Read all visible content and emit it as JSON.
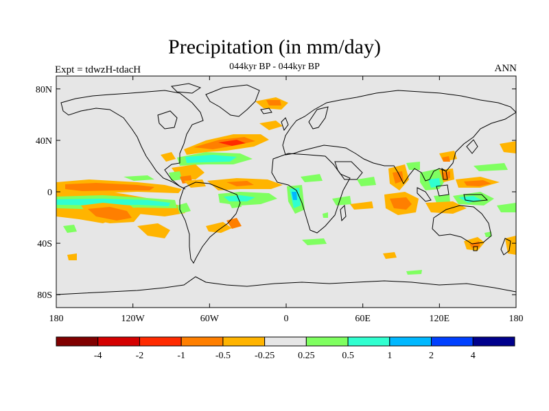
{
  "header": {
    "title": "Precipitation (in mm/day)",
    "subtitle": "044kyr BP - 044kyr BP",
    "left_label": "Expt = tdwzH-tdacH",
    "right_label": "ANN"
  },
  "map": {
    "projection": "cylindrical equidistant",
    "lon_range": [
      -180,
      180
    ],
    "lat_range": [
      -90,
      90
    ],
    "background_color": "#e6e6e6",
    "coastline_color": "#000000",
    "lat_ticks": [
      {
        "lat": 80,
        "label": "80N"
      },
      {
        "lat": 40,
        "label": "40N"
      },
      {
        "lat": 0,
        "label": "0"
      },
      {
        "lat": -40,
        "label": "40S"
      },
      {
        "lat": -80,
        "label": "80S"
      }
    ],
    "lon_ticks": [
      {
        "lon": -180,
        "label": "180"
      },
      {
        "lon": -120,
        "label": "120W"
      },
      {
        "lon": -60,
        "label": "60W"
      },
      {
        "lon": 0,
        "label": "0"
      },
      {
        "lon": 60,
        "label": "60E"
      },
      {
        "lon": 120,
        "label": "120E"
      },
      {
        "lon": 180,
        "label": "180"
      }
    ]
  },
  "colorbar": {
    "colors": [
      "#800000",
      "#d40000",
      "#ff2a00",
      "#ff7f00",
      "#ffb400",
      "#e6e6e6",
      "#7fff60",
      "#30ffd0",
      "#00b8ff",
      "#0040ff",
      "#00008c"
    ],
    "labels": [
      "-4",
      "-2",
      "-1",
      "-0.5",
      "-0.25",
      "0.25",
      "0.5",
      "1",
      "2",
      "4"
    ]
  }
}
